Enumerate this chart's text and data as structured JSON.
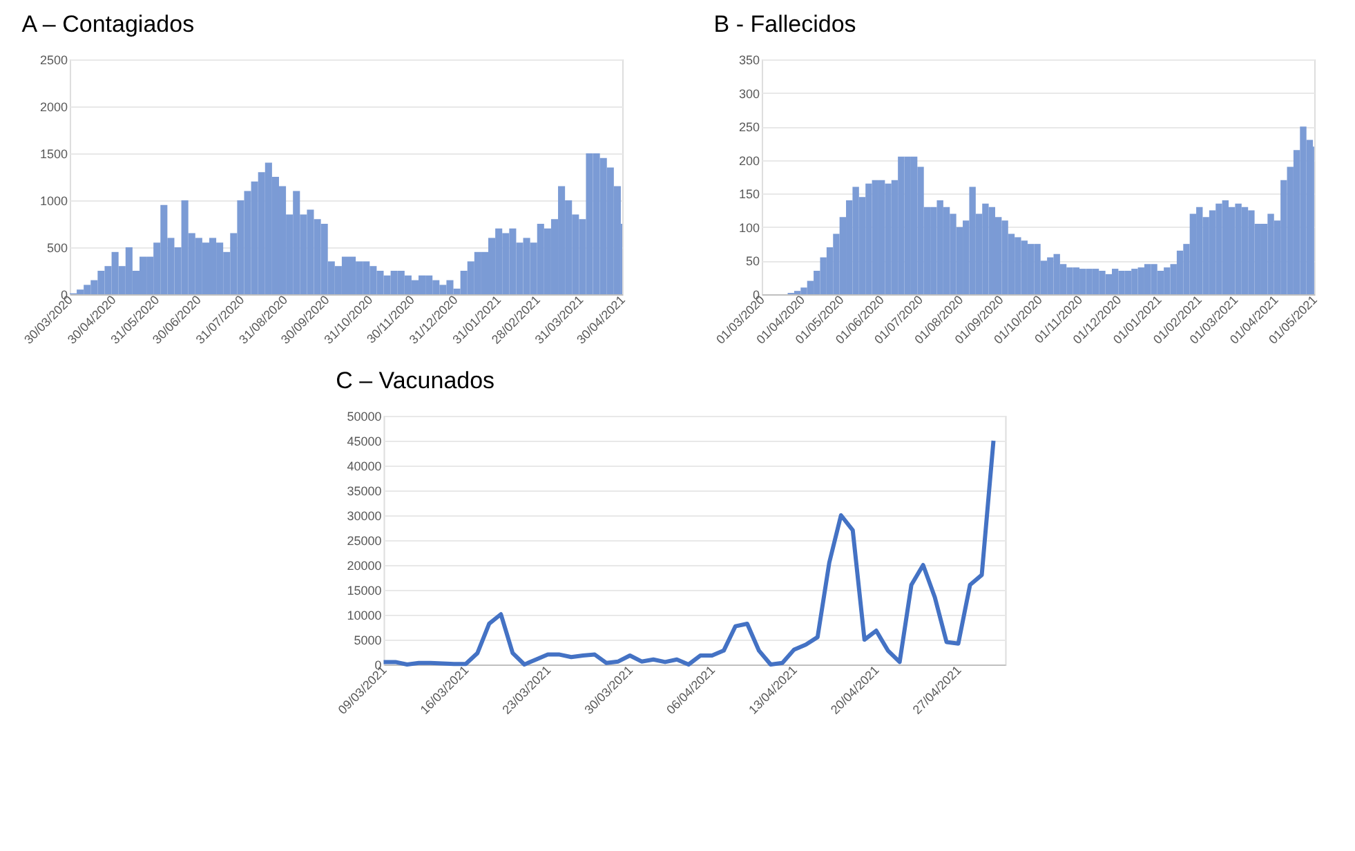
{
  "chart_data": [
    {
      "type": "bar",
      "title": "A – Contagiados",
      "color": "#7b9bd5",
      "grid": "y",
      "x": [
        "2020-03-30",
        "2020-04-04",
        "2020-04-09",
        "2020-04-14",
        "2020-04-19",
        "2020-04-24",
        "2020-04-29",
        "2020-05-04",
        "2020-05-09",
        "2020-05-14",
        "2020-05-19",
        "2020-05-24",
        "2020-05-29",
        "2020-06-03",
        "2020-06-08",
        "2020-06-13",
        "2020-06-18",
        "2020-06-23",
        "2020-06-28",
        "2020-07-03",
        "2020-07-08",
        "2020-07-13",
        "2020-07-18",
        "2020-07-23",
        "2020-07-28",
        "2020-08-02",
        "2020-08-07",
        "2020-08-12",
        "2020-08-17",
        "2020-08-22",
        "2020-08-27",
        "2020-09-01",
        "2020-09-06",
        "2020-09-11",
        "2020-09-16",
        "2020-09-21",
        "2020-09-26",
        "2020-10-01",
        "2020-10-06",
        "2020-10-11",
        "2020-10-16",
        "2020-10-21",
        "2020-10-26",
        "2020-10-31",
        "2020-11-05",
        "2020-11-10",
        "2020-11-15",
        "2020-11-20",
        "2020-11-25",
        "2020-11-30",
        "2020-12-05",
        "2020-12-10",
        "2020-12-15",
        "2020-12-20",
        "2020-12-25",
        "2020-12-30",
        "2021-01-04",
        "2021-01-09",
        "2021-01-14",
        "2021-01-19",
        "2021-01-24",
        "2021-01-29",
        "2021-02-03",
        "2021-02-08",
        "2021-02-13",
        "2021-02-18",
        "2021-02-23",
        "2021-02-28",
        "2021-03-05",
        "2021-03-10",
        "2021-03-15",
        "2021-03-20",
        "2021-03-25",
        "2021-03-30",
        "2021-04-04",
        "2021-04-09",
        "2021-04-14",
        "2021-04-19",
        "2021-04-24",
        "2021-04-29"
      ],
      "values": [
        10,
        50,
        100,
        150,
        250,
        300,
        450,
        300,
        500,
        250,
        400,
        400,
        550,
        950,
        600,
        500,
        1000,
        650,
        600,
        550,
        600,
        550,
        450,
        650,
        1000,
        1100,
        1200,
        1300,
        1400,
        1250,
        1150,
        850,
        1100,
        850,
        900,
        800,
        750,
        350,
        300,
        400,
        400,
        350,
        350,
        300,
        250,
        200,
        250,
        250,
        200,
        150,
        200,
        200,
        150,
        100,
        150,
        60,
        250,
        350,
        450,
        450,
        600,
        700,
        650,
        700,
        550,
        600,
        550,
        750,
        700,
        800,
        1150,
        1000,
        850,
        800,
        1500,
        1500,
        1450,
        1350,
        1150,
        750
      ],
      "xlim": [
        "2020-03-30",
        "2021-04-30"
      ],
      "ylim": [
        0,
        2500
      ],
      "yticks": [
        0,
        500,
        1000,
        1500,
        2000,
        2500
      ],
      "xticks": [
        {
          "value": "2020-03-30",
          "label": "30/03/2020"
        },
        {
          "value": "2020-04-30",
          "label": "30/04/2020"
        },
        {
          "value": "2020-05-31",
          "label": "31/05/2020"
        },
        {
          "value": "2020-06-30",
          "label": "30/06/2020"
        },
        {
          "value": "2020-07-31",
          "label": "31/07/2020"
        },
        {
          "value": "2020-08-31",
          "label": "31/08/2020"
        },
        {
          "value": "2020-09-30",
          "label": "30/09/2020"
        },
        {
          "value": "2020-10-31",
          "label": "31/10/2020"
        },
        {
          "value": "2020-11-30",
          "label": "30/11/2020"
        },
        {
          "value": "2020-12-31",
          "label": "31/12/2020"
        },
        {
          "value": "2021-01-31",
          "label": "31/01/2021"
        },
        {
          "value": "2021-02-28",
          "label": "28/02/2021"
        },
        {
          "value": "2021-03-31",
          "label": "31/03/2021"
        },
        {
          "value": "2021-04-30",
          "label": "30/04/2021"
        }
      ]
    },
    {
      "type": "bar",
      "title": "B - Fallecidos",
      "color": "#7b9bd5",
      "grid": "y",
      "x": [
        "2020-03-01",
        "2020-03-06",
        "2020-03-11",
        "2020-03-16",
        "2020-03-21",
        "2020-03-26",
        "2020-03-31",
        "2020-04-05",
        "2020-04-10",
        "2020-04-15",
        "2020-04-20",
        "2020-04-25",
        "2020-04-30",
        "2020-05-05",
        "2020-05-10",
        "2020-05-15",
        "2020-05-20",
        "2020-05-25",
        "2020-05-30",
        "2020-06-04",
        "2020-06-09",
        "2020-06-14",
        "2020-06-19",
        "2020-06-24",
        "2020-06-29",
        "2020-07-04",
        "2020-07-09",
        "2020-07-14",
        "2020-07-19",
        "2020-07-24",
        "2020-07-29",
        "2020-08-03",
        "2020-08-08",
        "2020-08-13",
        "2020-08-18",
        "2020-08-23",
        "2020-08-28",
        "2020-09-02",
        "2020-09-07",
        "2020-09-12",
        "2020-09-17",
        "2020-09-22",
        "2020-09-27",
        "2020-10-02",
        "2020-10-07",
        "2020-10-12",
        "2020-10-17",
        "2020-10-22",
        "2020-10-27",
        "2020-11-01",
        "2020-11-06",
        "2020-11-11",
        "2020-11-16",
        "2020-11-21",
        "2020-11-26",
        "2020-12-01",
        "2020-12-06",
        "2020-12-11",
        "2020-12-16",
        "2020-12-21",
        "2020-12-26",
        "2020-12-31",
        "2021-01-05",
        "2021-01-10",
        "2021-01-15",
        "2021-01-20",
        "2021-01-25",
        "2021-01-30",
        "2021-02-04",
        "2021-02-09",
        "2021-02-14",
        "2021-02-19",
        "2021-02-24",
        "2021-03-01",
        "2021-03-06",
        "2021-03-11",
        "2021-03-16",
        "2021-03-21",
        "2021-03-26",
        "2021-03-31",
        "2021-04-05",
        "2021-04-10",
        "2021-04-15",
        "2021-04-20",
        "2021-04-25",
        "2021-04-30"
      ],
      "values": [
        0,
        0,
        0,
        0,
        2,
        5,
        10,
        20,
        35,
        55,
        70,
        90,
        115,
        140,
        160,
        145,
        165,
        170,
        170,
        165,
        170,
        205,
        205,
        205,
        190,
        130,
        130,
        140,
        130,
        120,
        100,
        110,
        160,
        120,
        135,
        130,
        115,
        110,
        90,
        85,
        80,
        75,
        75,
        50,
        55,
        60,
        45,
        40,
        40,
        38,
        38,
        38,
        35,
        30,
        38,
        35,
        35,
        38,
        40,
        45,
        45,
        35,
        40,
        45,
        65,
        75,
        120,
        130,
        115,
        125,
        135,
        140,
        130,
        135,
        130,
        125,
        105,
        105,
        120,
        110,
        170,
        190,
        215,
        250,
        230,
        220
      ],
      "xlim": [
        "2020-03-01",
        "2021-05-01"
      ],
      "ylim": [
        0,
        350
      ],
      "yticks": [
        0,
        50,
        100,
        150,
        200,
        250,
        300,
        350
      ],
      "xticks": [
        {
          "value": "2020-03-01",
          "label": "01/03/2020"
        },
        {
          "value": "2020-04-01",
          "label": "01/04/2020"
        },
        {
          "value": "2020-05-01",
          "label": "01/05/2020"
        },
        {
          "value": "2020-06-01",
          "label": "01/06/2020"
        },
        {
          "value": "2020-07-01",
          "label": "01/07/2020"
        },
        {
          "value": "2020-08-01",
          "label": "01/08/2020"
        },
        {
          "value": "2020-09-01",
          "label": "01/09/2020"
        },
        {
          "value": "2020-10-01",
          "label": "01/10/2020"
        },
        {
          "value": "2020-11-01",
          "label": "01/11/2020"
        },
        {
          "value": "2020-12-01",
          "label": "01/12/2020"
        },
        {
          "value": "2021-01-01",
          "label": "01/01/2021"
        },
        {
          "value": "2021-02-01",
          "label": "01/02/2021"
        },
        {
          "value": "2021-03-01",
          "label": "01/03/2021"
        },
        {
          "value": "2021-04-01",
          "label": "01/04/2021"
        },
        {
          "value": "2021-05-01",
          "label": "01/05/2021"
        }
      ]
    },
    {
      "type": "line",
      "title": "C – Vacunados",
      "color": "#4472c4",
      "grid": "y",
      "marker": "none",
      "line_style": "solid",
      "x": [
        "2021-03-09",
        "2021-03-10",
        "2021-03-11",
        "2021-03-12",
        "2021-03-13",
        "2021-03-14",
        "2021-03-15",
        "2021-03-16",
        "2021-03-17",
        "2021-03-18",
        "2021-03-19",
        "2021-03-20",
        "2021-03-21",
        "2021-03-22",
        "2021-03-23",
        "2021-03-24",
        "2021-03-25",
        "2021-03-26",
        "2021-03-27",
        "2021-03-28",
        "2021-03-29",
        "2021-03-30",
        "2021-03-31",
        "2021-04-01",
        "2021-04-02",
        "2021-04-03",
        "2021-04-04",
        "2021-04-05",
        "2021-04-06",
        "2021-04-07",
        "2021-04-08",
        "2021-04-09",
        "2021-04-10",
        "2021-04-11",
        "2021-04-12",
        "2021-04-13",
        "2021-04-14",
        "2021-04-15",
        "2021-04-16",
        "2021-04-17",
        "2021-04-18",
        "2021-04-19",
        "2021-04-20",
        "2021-04-21",
        "2021-04-22",
        "2021-04-23",
        "2021-04-24",
        "2021-04-25",
        "2021-04-26",
        "2021-04-27",
        "2021-04-28",
        "2021-04-29",
        "2021-04-30"
      ],
      "values": [
        500,
        500,
        0,
        300,
        300,
        200,
        100,
        100,
        2300,
        8200,
        10100,
        2300,
        0,
        1000,
        2000,
        2000,
        1500,
        1800,
        2000,
        300,
        600,
        1800,
        600,
        1000,
        500,
        1000,
        0,
        1800,
        1800,
        2800,
        7700,
        8200,
        2800,
        0,
        300,
        3000,
        4000,
        5500,
        20500,
        30000,
        27000,
        5000,
        6800,
        2800,
        500,
        16000,
        20000,
        13500,
        4500,
        4200,
        16000,
        18000,
        45000
      ],
      "xlim": [
        "2021-03-09",
        "2021-05-01"
      ],
      "ylim": [
        0,
        50000
      ],
      "yticks": [
        0,
        5000,
        10000,
        15000,
        20000,
        25000,
        30000,
        35000,
        40000,
        45000,
        50000
      ],
      "xticks": [
        {
          "value": "2021-03-09",
          "label": "09/03/2021"
        },
        {
          "value": "2021-03-16",
          "label": "16/03/2021"
        },
        {
          "value": "2021-03-23",
          "label": "23/03/2021"
        },
        {
          "value": "2021-03-30",
          "label": "30/03/2021"
        },
        {
          "value": "2021-04-06",
          "label": "06/04/2021"
        },
        {
          "value": "2021-04-13",
          "label": "13/04/2021"
        },
        {
          "value": "2021-04-20",
          "label": "20/04/2021"
        },
        {
          "value": "2021-04-27",
          "label": "27/04/2021"
        }
      ]
    }
  ]
}
